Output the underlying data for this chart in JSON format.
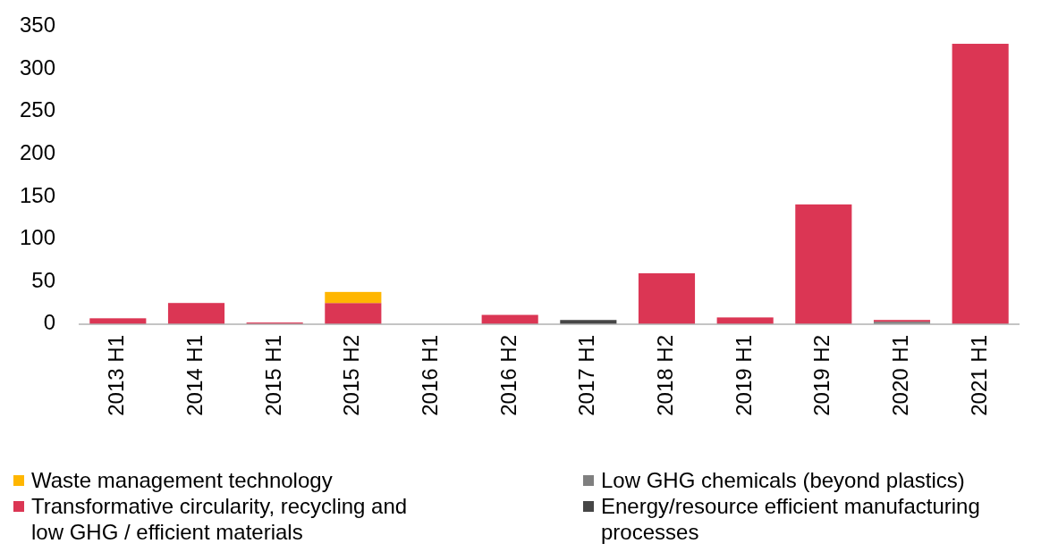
{
  "chart_data": {
    "type": "bar",
    "stacked": true,
    "categories": [
      "2013 H1",
      "2014 H1",
      "2015 H1",
      "2015 H2",
      "2016 H1",
      "2016 H2",
      "2017 H1",
      "2018 H2",
      "2019 H1",
      "2019 H2",
      "2020 H1",
      "2021 H1"
    ],
    "series": [
      {
        "name": "Energy/resource efficient manufacturing processes",
        "color": "#464646",
        "values": [
          0,
          0,
          0,
          0,
          0,
          0,
          5,
          0,
          0,
          0,
          0,
          0
        ]
      },
      {
        "name": "Low GHG chemicals (beyond plastics)",
        "color": "#7f7f7f",
        "values": [
          0,
          0,
          0,
          0,
          0,
          0,
          0,
          0,
          0,
          0,
          3,
          0
        ]
      },
      {
        "name": "Transformative circularity, recycling and low GHG / efficient materials",
        "color": "#db3654",
        "values": [
          7,
          25,
          2,
          25,
          null,
          11,
          0,
          60,
          8,
          141,
          2,
          330
        ]
      },
      {
        "name": "Waste management technology",
        "color": "#ffb600",
        "values": [
          0,
          0,
          0,
          13,
          0,
          0,
          0,
          0,
          0,
          0,
          0,
          0
        ]
      }
    ],
    "ylim": [
      0,
      350
    ],
    "yticks": [
      0,
      50,
      100,
      150,
      200,
      250,
      300,
      350
    ],
    "grid": false,
    "legend": "bottom"
  }
}
